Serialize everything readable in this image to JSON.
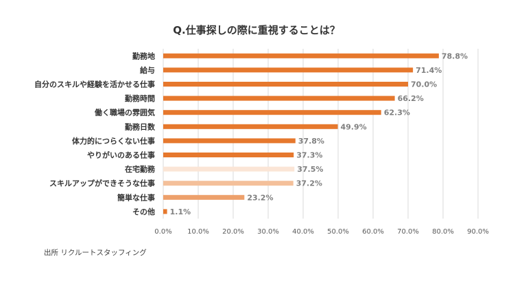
{
  "chart_data": {
    "type": "bar",
    "orientation": "horizontal",
    "title": "Q.仕事探しの際に重視することは？",
    "categories": [
      "勤務地",
      "給与",
      "自分のスキルや経験を活かせる仕事",
      "勤務時間",
      "働く職場の雰囲気",
      "勤務日数",
      "体力的につらくない仕事",
      "やりがいのある仕事",
      "在宅勤務",
      "スキルアップができそうな仕事",
      "簡単な仕事",
      "その他"
    ],
    "values": [
      78.8,
      71.4,
      70.0,
      66.2,
      62.3,
      49.9,
      37.8,
      37.3,
      37.5,
      37.2,
      23.2,
      1.1
    ],
    "value_labels": [
      "78.8%",
      "71.4%",
      "70.0%",
      "66.2%",
      "62.3%",
      "49.9%",
      "37.8%",
      "37.3%",
      "37.5%",
      "37.2%",
      "23.2%",
      "1.1%"
    ],
    "bar_colors": [
      "#e6782d",
      "#e6782d",
      "#e6782d",
      "#e6782d",
      "#e6782d",
      "#e6782d",
      "#e6782d",
      "#e6782d",
      "#fbe5d6",
      "#f4c09a",
      "#eda06b",
      "#e6782d"
    ],
    "xlim": [
      0,
      90
    ],
    "xticks": [
      "0.0%",
      "10.0%",
      "20.0%",
      "30.0%",
      "40.0%",
      "50.0%",
      "60.0%",
      "70.0%",
      "80.0%",
      "90.0%"
    ],
    "grid": true,
    "source": "出所 リクルートスタッフィング"
  }
}
